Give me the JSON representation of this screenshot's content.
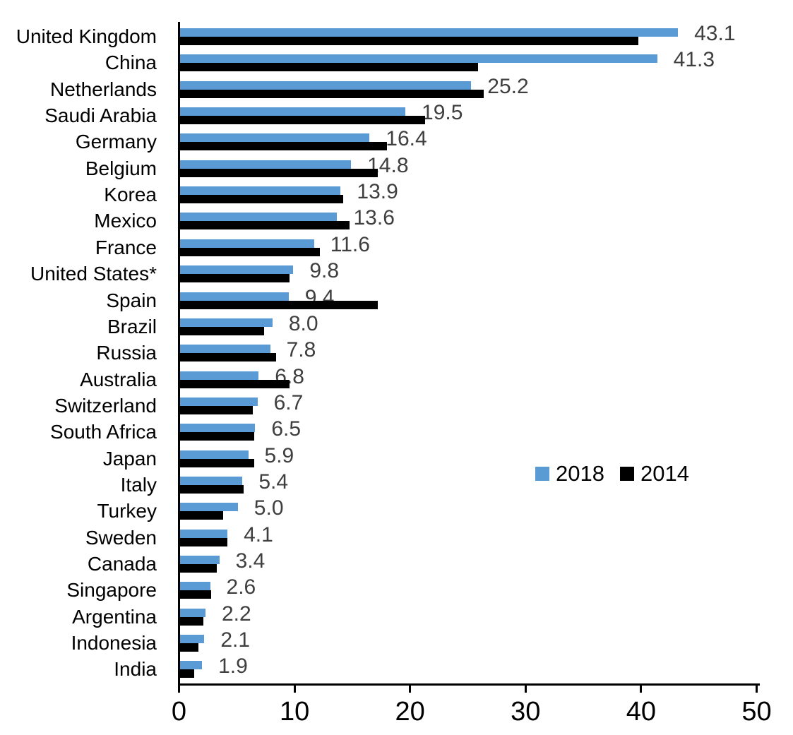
{
  "chart_data": {
    "type": "bar",
    "orientation": "horizontal",
    "title": "",
    "xlabel": "",
    "ylabel": "",
    "xlim": [
      0,
      50
    ],
    "x_ticks": [
      "0",
      "10",
      "20",
      "30",
      "40",
      "50"
    ],
    "grid": false,
    "legend_position": "middle-right",
    "value_labels_shown_for": "2018",
    "value_label_color": "#3f3f3f",
    "categories": [
      "United Kingdom",
      "China",
      "Netherlands",
      "Saudi Arabia",
      "Germany",
      "Belgium",
      "Korea",
      "Mexico",
      "France",
      "United States*",
      "Spain",
      "Brazil",
      "Russia",
      "Australia",
      "Switzerland",
      "South Africa",
      "Japan",
      "Italy",
      "Turkey",
      "Sweden",
      "Canada",
      "Singapore",
      "Argentina",
      "Indonesia",
      "India"
    ],
    "series": [
      {
        "name": "2018",
        "color": "#5b9bd5",
        "values": [
          43.1,
          41.3,
          25.2,
          19.5,
          16.4,
          14.8,
          13.9,
          13.6,
          11.6,
          9.8,
          9.4,
          8.0,
          7.8,
          6.8,
          6.7,
          6.5,
          5.9,
          5.4,
          5.0,
          4.1,
          3.4,
          2.6,
          2.2,
          2.1,
          1.9
        ],
        "labels": [
          "43.1",
          "41.3",
          "25.2",
          "19.5",
          "16.4",
          "14.8",
          "13.9",
          "13.6",
          "11.6",
          "9.8",
          "9.4",
          "8.0",
          "7.8",
          "6.8",
          "6.7",
          "6.5",
          "5.9",
          "5.4",
          "5.0",
          "4.1",
          "3.4",
          "2.6",
          "2.2",
          "2.1",
          "1.9"
        ]
      },
      {
        "name": "2014",
        "color": "#000000",
        "values": [
          39.7,
          25.8,
          26.3,
          21.2,
          17.9,
          17.1,
          14.1,
          14.7,
          12.1,
          9.5,
          17.1,
          7.3,
          8.3,
          9.5,
          6.3,
          6.4,
          6.4,
          5.5,
          3.7,
          4.1,
          3.2,
          2.7,
          2.0,
          1.6,
          1.2
        ]
      }
    ]
  }
}
